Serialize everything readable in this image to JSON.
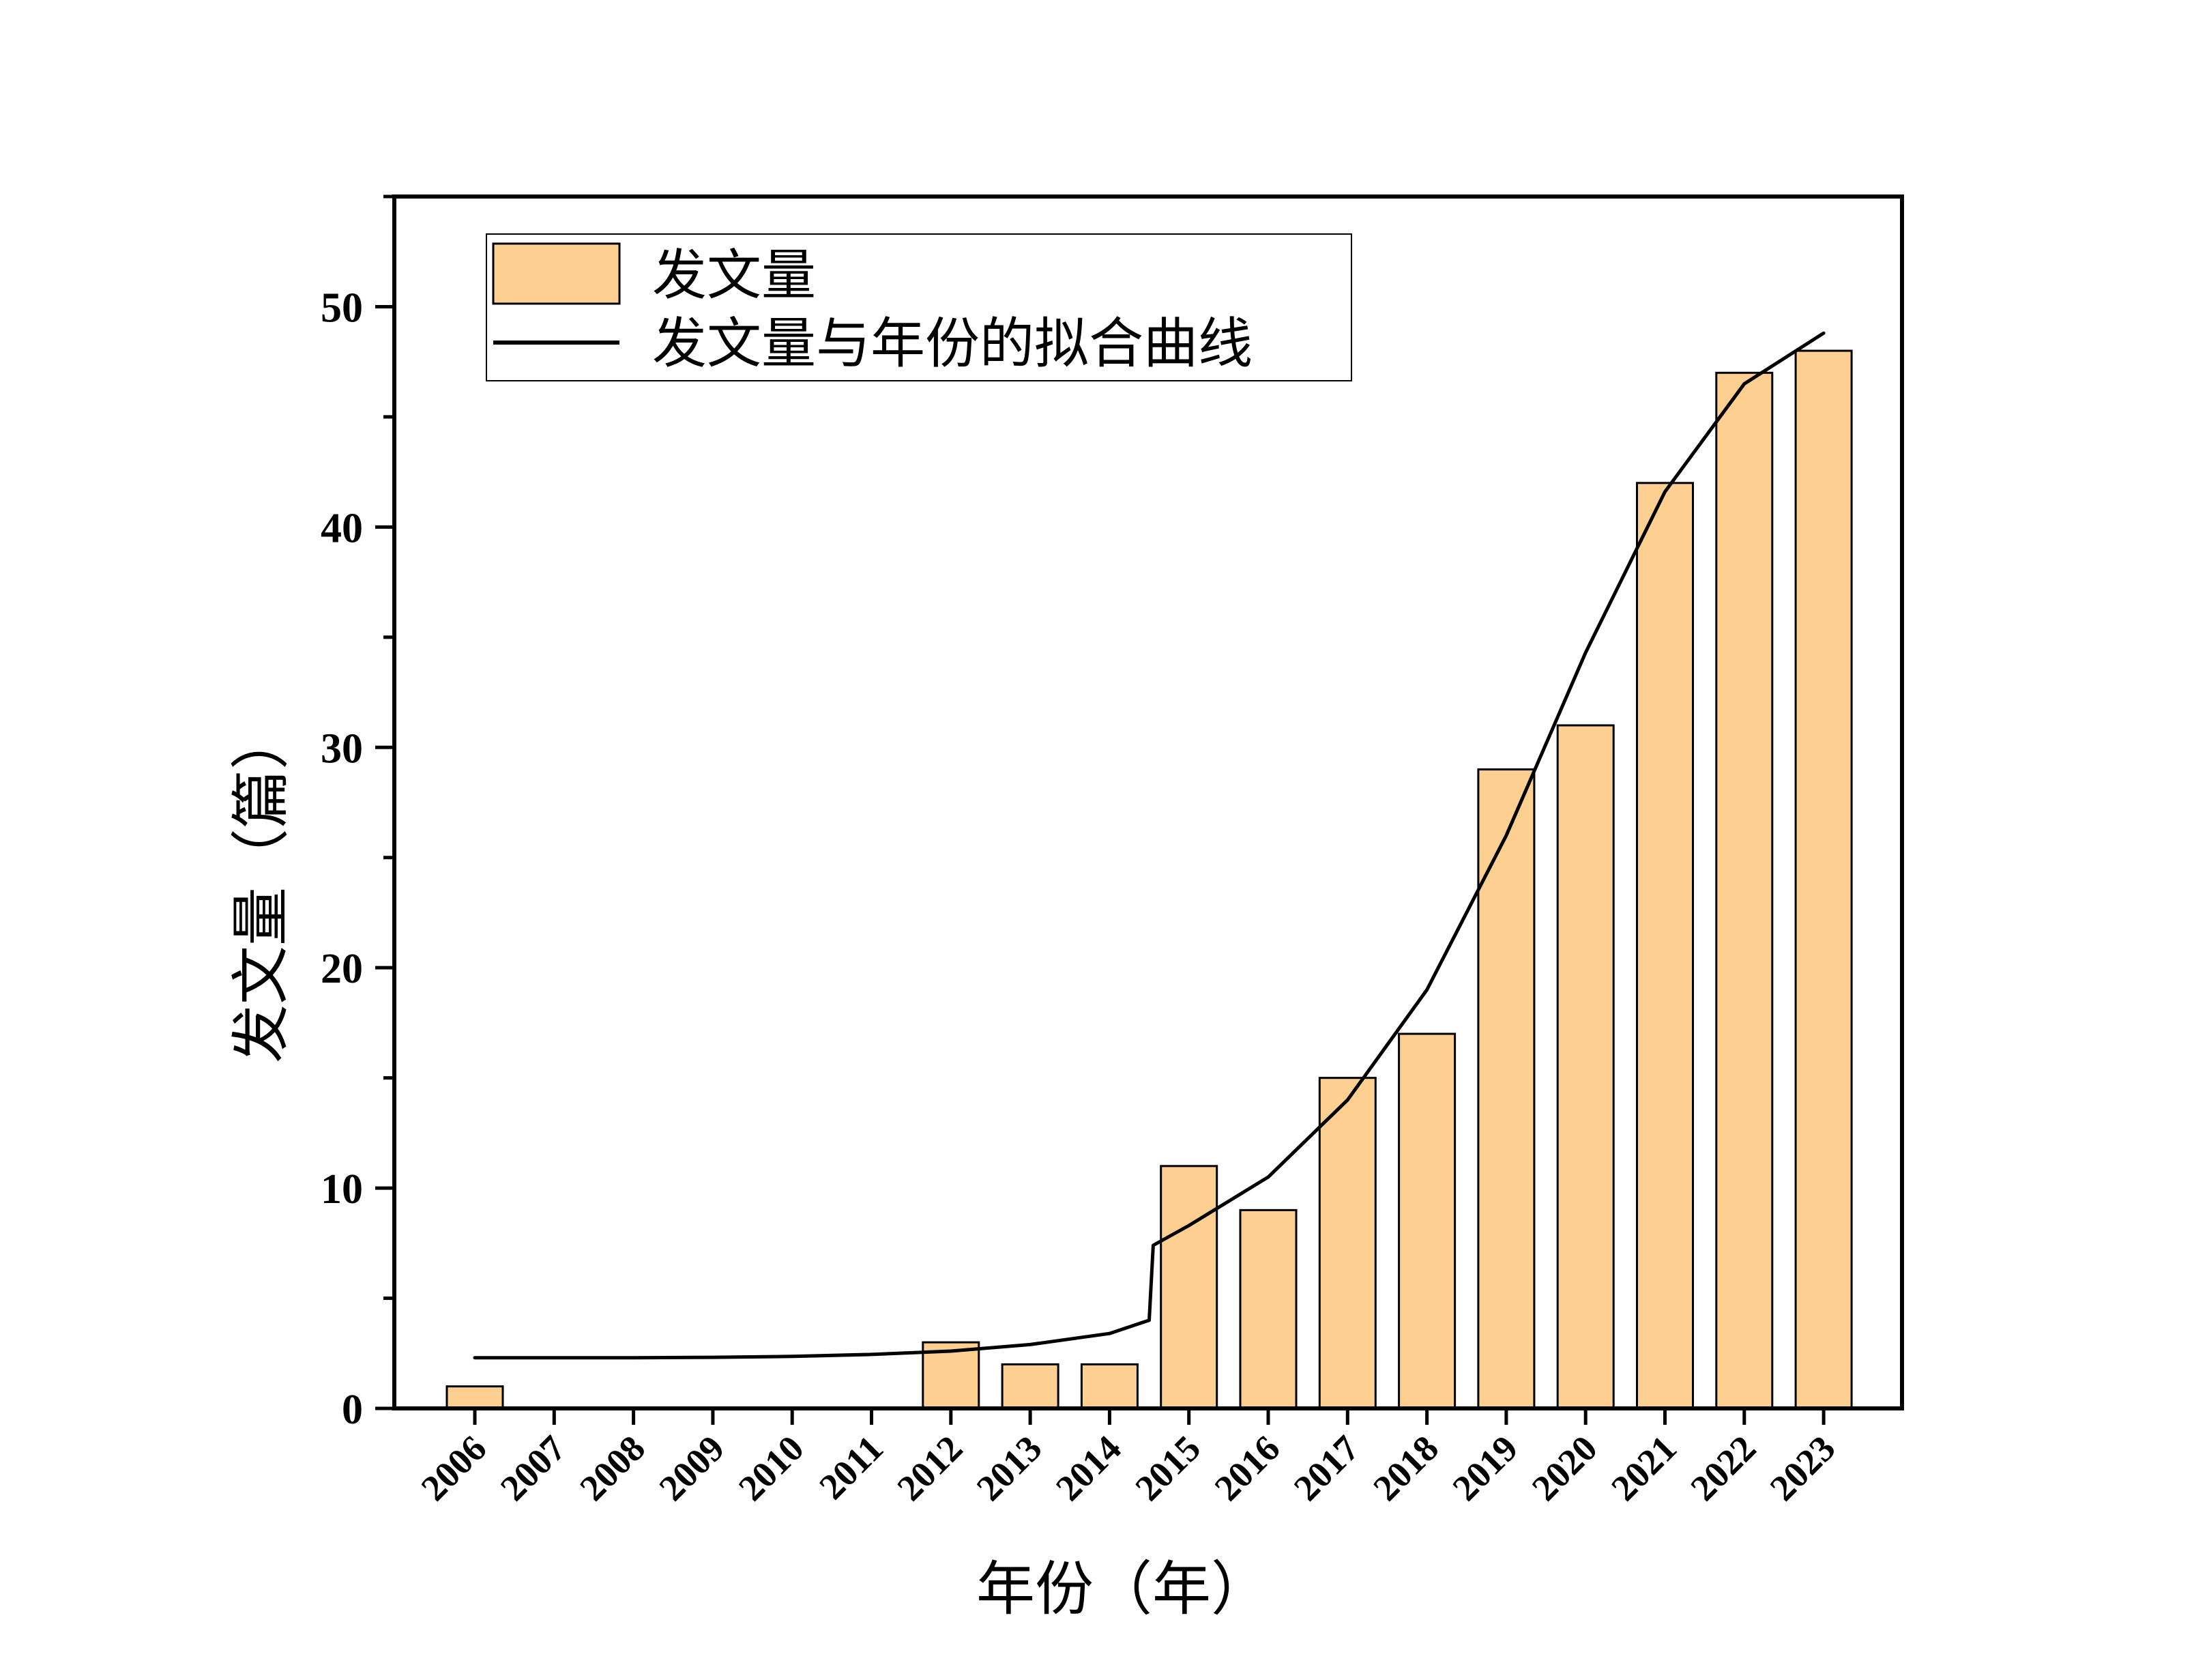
{
  "chart_data": {
    "type": "bar",
    "xlabel": "年份（年）",
    "ylabel": "发文量（篇）",
    "ylim": [
      0,
      55
    ],
    "yticks": [
      0,
      10,
      20,
      30,
      40,
      50
    ],
    "categories": [
      "2006",
      "2007",
      "2008",
      "2009",
      "2010",
      "2011",
      "2012",
      "2013",
      "2014",
      "2015",
      "2016",
      "2017",
      "2018",
      "2019",
      "2020",
      "2021",
      "2022",
      "2023"
    ],
    "series": [
      {
        "name": "发文量",
        "kind": "bar",
        "color": "#FDCF91",
        "values": [
          1,
          0,
          0,
          0,
          0,
          0,
          3,
          2,
          2,
          11,
          9,
          15,
          17,
          29,
          31,
          42,
          47,
          48
        ]
      },
      {
        "name": "发文量与年份的拟合曲线",
        "kind": "line",
        "color": "#000000",
        "x": [
          2006,
          2007,
          2008,
          2009,
          2010,
          2011,
          2012,
          2013,
          2014,
          2014.5,
          2014.55,
          2015,
          2016,
          2017,
          2018,
          2019,
          2020,
          2021,
          2022,
          2023
        ],
        "y": [
          2.3,
          2.3,
          2.3,
          2.32,
          2.36,
          2.45,
          2.6,
          2.9,
          3.4,
          4.0,
          7.4,
          8.3,
          10.5,
          14.0,
          19.0,
          26.0,
          34.3,
          41.6,
          46.5,
          48.8
        ]
      }
    ],
    "legend_position": "top-left",
    "grid": false
  }
}
